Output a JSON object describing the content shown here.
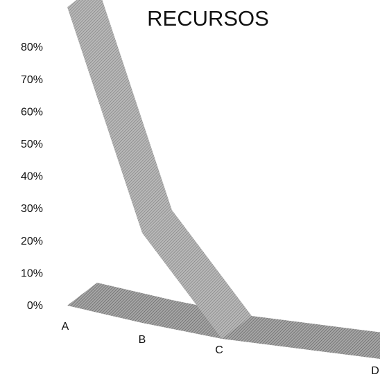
{
  "chart_data": {
    "type": "line",
    "style": "3d-ribbon",
    "title": "RECURSOS",
    "xlabel": "",
    "ylabel": "",
    "categories": [
      "A",
      "B",
      "C",
      "D"
    ],
    "series": [
      {
        "values": [
          73,
          22,
          0,
          0
        ],
        "color": "#9a9a9a"
      }
    ],
    "floor_color": "#8e8e8e",
    "ylim": [
      0,
      80
    ],
    "yticks": [
      "0%",
      "10%",
      "20%",
      "30%",
      "40%",
      "50%",
      "60%",
      "70%",
      "80%"
    ],
    "grid": false,
    "legend": "none"
  }
}
